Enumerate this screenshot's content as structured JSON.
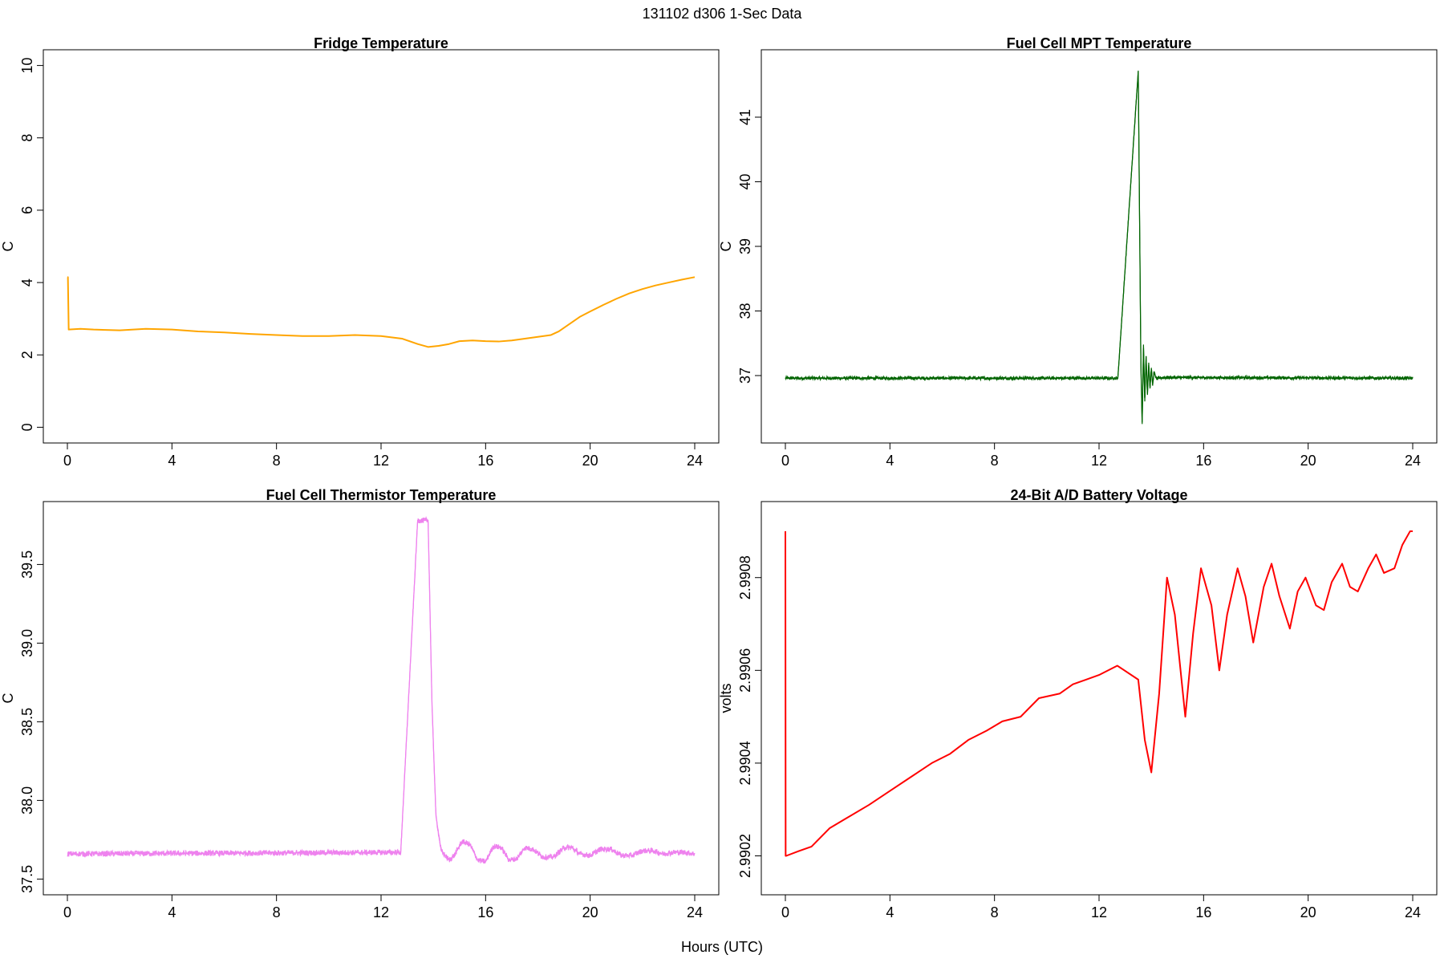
{
  "figure": {
    "title": "131102   d306   1-Sec Data",
    "xlabel": "Hours (UTC)"
  },
  "chart_data": [
    {
      "type": "line",
      "title": "Fridge Temperature",
      "xlabel": "",
      "ylabel": "C",
      "color": "#ffa500",
      "xlim": [
        0,
        24
      ],
      "ylim": [
        0,
        10
      ],
      "xticks": [
        0,
        4,
        8,
        12,
        16,
        20,
        24
      ],
      "yticks": [
        0,
        2,
        4,
        6,
        8,
        10
      ],
      "ytick_labels": [
        "0",
        "2",
        "4",
        "6",
        "8",
        "10"
      ],
      "grid": false,
      "series": [
        {
          "x": [
            0,
            0.02,
            0.05,
            0.5,
            1,
            2,
            3,
            4,
            5,
            6,
            7,
            8,
            9,
            10,
            11,
            12,
            12.8,
            13.4,
            13.8,
            14.2,
            14.6,
            15,
            15.5,
            16,
            16.5,
            17,
            17.5,
            18,
            18.5,
            18.8,
            19.2,
            19.6,
            20,
            20.5,
            21,
            21.5,
            22,
            22.5,
            23,
            23.5,
            24
          ],
          "y": [
            4.15,
            4.15,
            2.7,
            2.72,
            2.7,
            2.68,
            2.72,
            2.7,
            2.65,
            2.62,
            2.58,
            2.55,
            2.52,
            2.52,
            2.55,
            2.52,
            2.45,
            2.3,
            2.22,
            2.25,
            2.3,
            2.38,
            2.4,
            2.38,
            2.37,
            2.4,
            2.45,
            2.5,
            2.55,
            2.65,
            2.85,
            3.05,
            3.2,
            3.38,
            3.55,
            3.7,
            3.82,
            3.92,
            4.0,
            4.08,
            4.15
          ]
        }
      ]
    },
    {
      "type": "line",
      "title": "Fuel Cell MPT Temperature",
      "xlabel": "",
      "ylabel": "C",
      "color": "#006400",
      "xlim": [
        0,
        24
      ],
      "ylim": [
        36.2,
        41.8
      ],
      "xticks": [
        0,
        4,
        8,
        12,
        16,
        20,
        24
      ],
      "yticks": [
        37,
        38,
        39,
        40,
        41
      ],
      "ytick_labels": [
        "37",
        "38",
        "39",
        "40",
        "41"
      ],
      "grid": false,
      "noise": 0.05,
      "series": [
        {
          "x": [
            0,
            12.7,
            12.72,
            13.5,
            13.6,
            13.65,
            13.7,
            13.75,
            13.8,
            13.85,
            13.9,
            13.95,
            14.0,
            14.05,
            14.1,
            14.2,
            14.4,
            24
          ],
          "y": [
            36.96,
            36.96,
            36.96,
            41.72,
            37.2,
            36.25,
            37.48,
            36.6,
            37.3,
            36.7,
            37.2,
            36.8,
            37.12,
            36.85,
            37.05,
            36.95,
            36.97,
            36.96
          ]
        }
      ]
    },
    {
      "type": "line",
      "title": "Fuel Cell Thermistor Temperature",
      "xlabel": "",
      "ylabel": "C",
      "color": "#ee82ee",
      "xlim": [
        0,
        24
      ],
      "ylim": [
        37.5,
        39.8
      ],
      "xticks": [
        0,
        4,
        8,
        12,
        16,
        20,
        24
      ],
      "yticks": [
        37.5,
        38.0,
        38.5,
        39.0,
        39.5
      ],
      "ytick_labels": [
        "37.5",
        "38.0",
        "38.5",
        "39.0",
        "39.5"
      ],
      "grid": false,
      "noise": 0.035,
      "series": [
        {
          "x": [
            0,
            12.72,
            12.75,
            13.4,
            13.8,
            13.95,
            14.1,
            14.3,
            14.6,
            14.8,
            15.1,
            15.4,
            15.7,
            16.0,
            16.3,
            16.6,
            16.9,
            17.2,
            17.5,
            17.8,
            18.2,
            18.6,
            19.0,
            19.3,
            19.6,
            20.0,
            20.4,
            20.8,
            21.2,
            21.6,
            22.0,
            22.4,
            22.8,
            23.2,
            23.6,
            24.0
          ],
          "y": [
            37.66,
            37.67,
            37.66,
            39.78,
            39.78,
            38.6,
            37.9,
            37.68,
            37.62,
            37.65,
            37.74,
            37.72,
            37.62,
            37.61,
            37.71,
            37.7,
            37.62,
            37.63,
            37.7,
            37.69,
            37.64,
            37.64,
            37.7,
            37.7,
            37.66,
            37.65,
            37.69,
            37.69,
            37.65,
            37.65,
            37.68,
            37.68,
            37.66,
            37.67,
            37.67,
            37.66
          ]
        }
      ]
    },
    {
      "type": "line",
      "title": "24-Bit A/D Battery Voltage",
      "xlabel": "",
      "ylabel": "volts",
      "color": "#ff0000",
      "xlim": [
        0,
        24
      ],
      "ylim": [
        2.99015,
        2.99093
      ],
      "xticks": [
        0,
        4,
        8,
        12,
        16,
        20,
        24
      ],
      "yticks": [
        2.9902,
        2.9904,
        2.9906,
        2.9908
      ],
      "ytick_labels": [
        "2.9902",
        "2.9904",
        "2.9906",
        "2.9908"
      ],
      "grid": false,
      "series": [
        {
          "x": [
            0,
            0.01,
            0.03,
            0.5,
            1.0,
            1.7,
            2.3,
            3.2,
            4.0,
            4.8,
            5.6,
            6.3,
            7.0,
            7.7,
            8.3,
            9.0,
            9.7,
            10.5,
            11.0,
            11.5,
            12.0,
            12.7,
            13.5,
            13.75,
            14.0,
            14.3,
            14.6,
            14.9,
            15.3,
            15.6,
            15.9,
            16.3,
            16.6,
            16.9,
            17.3,
            17.6,
            17.9,
            18.3,
            18.6,
            18.9,
            19.3,
            19.6,
            19.9,
            20.3,
            20.6,
            20.9,
            21.3,
            21.6,
            21.9,
            22.3,
            22.6,
            22.9,
            23.3,
            23.6,
            23.9,
            24.0
          ],
          "y": [
            2.9909,
            2.9902,
            2.9902,
            2.99021,
            2.99022,
            2.99026,
            2.99028,
            2.99031,
            2.99034,
            2.99037,
            2.9904,
            2.99042,
            2.99045,
            2.99047,
            2.99049,
            2.9905,
            2.99054,
            2.99055,
            2.99057,
            2.99058,
            2.99059,
            2.99061,
            2.99058,
            2.99045,
            2.99038,
            2.99055,
            2.9908,
            2.99072,
            2.9905,
            2.99068,
            2.99082,
            2.99074,
            2.9906,
            2.99072,
            2.99082,
            2.99076,
            2.99066,
            2.99078,
            2.99083,
            2.99076,
            2.99069,
            2.99077,
            2.9908,
            2.99074,
            2.99073,
            2.99079,
            2.99083,
            2.99078,
            2.99077,
            2.99082,
            2.99085,
            2.99081,
            2.99082,
            2.99087,
            2.9909,
            2.9909
          ]
        }
      ]
    }
  ]
}
